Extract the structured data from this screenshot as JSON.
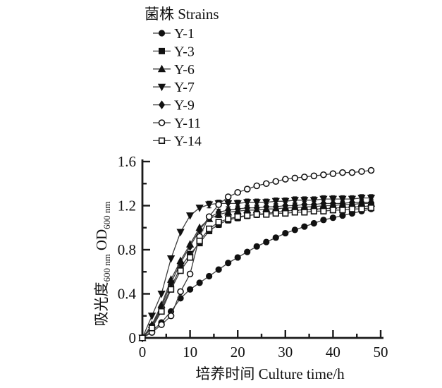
{
  "figure": {
    "background": "#ffffff",
    "line_color": "#3d3d3d",
    "marker_color": "#111111",
    "axis_color": "#1a1a1a"
  },
  "chart_data": {
    "type": "line",
    "legend_title": "菌株 Strains",
    "legend_position": "top-left-outside",
    "xlabel": "培养时间  Culture time/h",
    "ylabel_main": "吸光度",
    "ylabel_sub1": "600 nm",
    "ylabel_mid": "OD",
    "ylabel_sub2": "600 nm",
    "xlim": [
      0,
      50
    ],
    "ylim": [
      0,
      1.6
    ],
    "x_major_ticks": [
      "0",
      "10",
      "20",
      "30",
      "40",
      "50"
    ],
    "x_minor_ticks": [
      5,
      15,
      25,
      35,
      45
    ],
    "y_major_ticks": [
      "0",
      "0.4",
      "0.8",
      "1.2",
      "1.6"
    ],
    "y_minor_ticks": [
      0.2,
      0.6,
      1.0,
      1.4
    ],
    "grid": false,
    "x": [
      0,
      2,
      4,
      6,
      8,
      10,
      12,
      14,
      16,
      18,
      20,
      22,
      24,
      26,
      28,
      30,
      32,
      34,
      36,
      38,
      40,
      42,
      44,
      46,
      48
    ],
    "series": [
      {
        "name": "Y-1",
        "marker": "circle-filled",
        "values": [
          0,
          0.06,
          0.14,
          0.24,
          0.36,
          0.44,
          0.5,
          0.56,
          0.62,
          0.68,
          0.73,
          0.78,
          0.83,
          0.87,
          0.91,
          0.95,
          0.98,
          1.01,
          1.04,
          1.07,
          1.09,
          1.11,
          1.13,
          1.15,
          1.17
        ]
      },
      {
        "name": "Y-3",
        "marker": "square-filled",
        "error": 0.028,
        "error_from": 16,
        "values": [
          0,
          0.1,
          0.26,
          0.46,
          0.64,
          0.76,
          0.86,
          0.97,
          1.03,
          1.07,
          1.09,
          1.11,
          1.12,
          1.13,
          1.14,
          1.15,
          1.16,
          1.16,
          1.17,
          1.17,
          1.18,
          1.18,
          1.19,
          1.19,
          1.2
        ]
      },
      {
        "name": "Y-6",
        "marker": "triangle-up-filled",
        "error": 0.028,
        "error_from": 16,
        "values": [
          0,
          0.12,
          0.3,
          0.53,
          0.7,
          0.85,
          1.0,
          1.08,
          1.12,
          1.14,
          1.15,
          1.16,
          1.16,
          1.17,
          1.17,
          1.18,
          1.18,
          1.19,
          1.19,
          1.2,
          1.2,
          1.21,
          1.21,
          1.22,
          1.22
        ]
      },
      {
        "name": "Y-7",
        "marker": "triangle-down-filled",
        "error": 0.03,
        "error_from": 14,
        "values": [
          0,
          0.2,
          0.4,
          0.72,
          0.96,
          1.11,
          1.18,
          1.21,
          1.22,
          1.22,
          1.22,
          1.23,
          1.23,
          1.23,
          1.24,
          1.24,
          1.25,
          1.25,
          1.25,
          1.26,
          1.26,
          1.26,
          1.26,
          1.27,
          1.27
        ]
      },
      {
        "name": "Y-9",
        "marker": "diamond-filled",
        "error": 0.028,
        "error_from": 16,
        "values": [
          0,
          0.11,
          0.28,
          0.5,
          0.68,
          0.83,
          0.98,
          1.09,
          1.14,
          1.16,
          1.17,
          1.18,
          1.18,
          1.19,
          1.19,
          1.2,
          1.2,
          1.21,
          1.21,
          1.22,
          1.22,
          1.22,
          1.23,
          1.23,
          1.23
        ]
      },
      {
        "name": "Y-11",
        "marker": "circle-open",
        "values": [
          0,
          0.05,
          0.12,
          0.2,
          0.42,
          0.58,
          0.92,
          1.1,
          1.21,
          1.28,
          1.32,
          1.35,
          1.38,
          1.4,
          1.42,
          1.44,
          1.45,
          1.46,
          1.47,
          1.48,
          1.49,
          1.5,
          1.5,
          1.51,
          1.52
        ]
      },
      {
        "name": "Y-14",
        "marker": "square-open",
        "error": 0.025,
        "error_from": 16,
        "values": [
          0,
          0.09,
          0.24,
          0.44,
          0.61,
          0.73,
          0.88,
          0.99,
          1.05,
          1.08,
          1.1,
          1.11,
          1.12,
          1.12,
          1.13,
          1.13,
          1.14,
          1.14,
          1.15,
          1.15,
          1.16,
          1.16,
          1.17,
          1.17,
          1.18
        ]
      }
    ]
  }
}
